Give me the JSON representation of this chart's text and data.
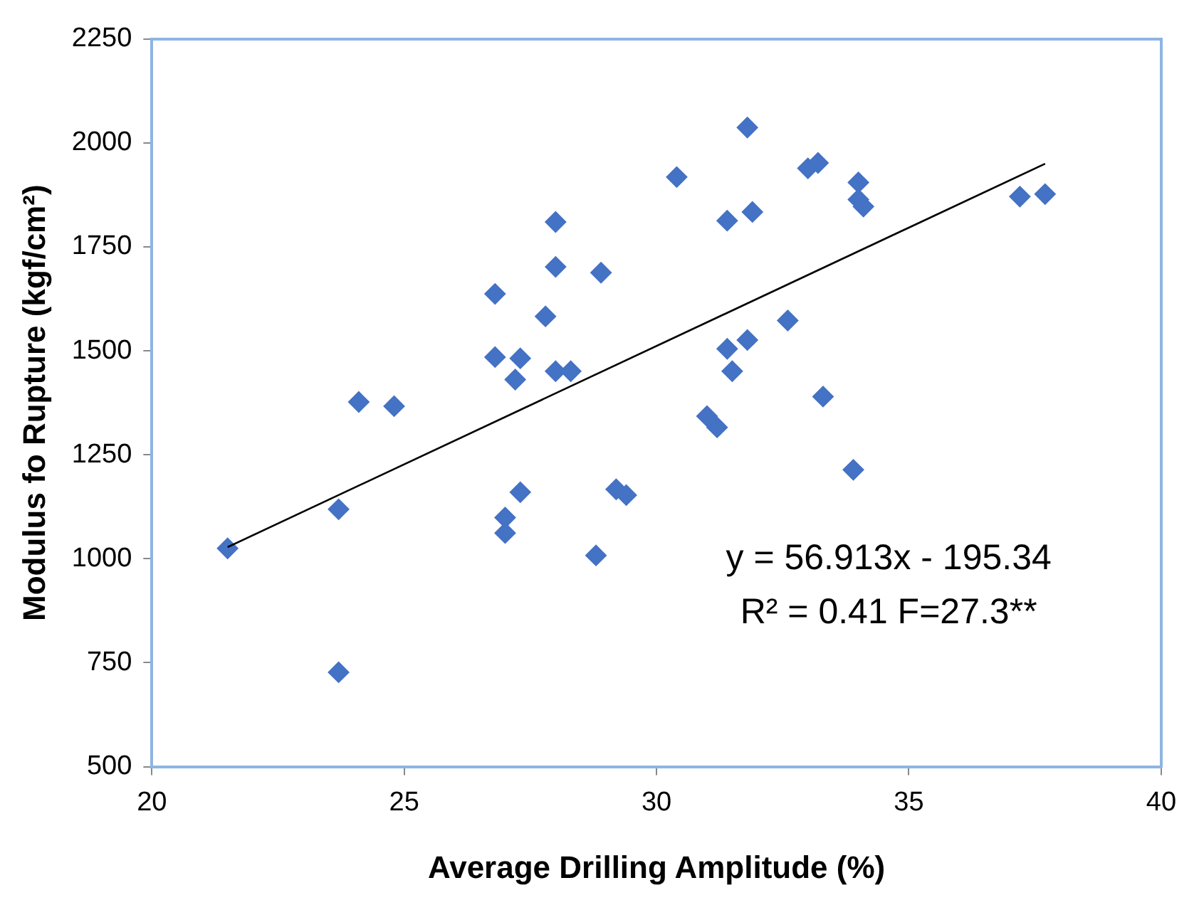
{
  "chart_data": {
    "type": "scatter",
    "xlabel": "Average Drilling Amplitude (%)",
    "ylabel": "Modulus fo Rupture (kgf/cm²)",
    "xlim": [
      20,
      40
    ],
    "xticks": [
      20,
      25,
      30,
      35,
      40
    ],
    "ylim": [
      500,
      2250
    ],
    "yticks": [
      500,
      750,
      1000,
      1250,
      1500,
      1750,
      2000,
      2250
    ],
    "grid": false,
    "legend": false,
    "marker": "diamond",
    "annotations": [
      "y = 56.913x - 195.34",
      "R² = 0.41 F=27.3**"
    ],
    "series": [
      {
        "type": "scatter",
        "color": "#4472c4",
        "x": [
          21.5,
          23.7,
          23.7,
          24.1,
          24.8,
          26.8,
          26.8,
          27.0,
          27.0,
          27.3,
          27.3,
          27.2,
          27.8,
          28.0,
          28.0,
          28.3,
          28.0,
          28.8,
          28.9,
          29.2,
          29.4,
          30.4,
          31.0,
          31.2,
          31.4,
          31.4,
          31.5,
          31.8,
          31.8,
          31.9,
          32.6,
          33.0,
          33.2,
          33.3,
          33.9,
          34.0,
          34.0,
          34.1,
          37.2,
          37.7
        ],
        "values": [
          1025,
          1119,
          727,
          1377,
          1367,
          1637,
          1485,
          1099,
          1062,
          1160,
          1482,
          1431,
          1583,
          1702,
          1451,
          1451,
          1810,
          1008,
          1688,
          1167,
          1153,
          1918,
          1343,
          1316,
          1505,
          1813,
          1451,
          2037,
          1526,
          1834,
          1573,
          1939,
          1952,
          1390,
          1214,
          1905,
          1864,
          1847,
          1871,
          1877
        ]
      },
      {
        "type": "line",
        "color": "#000000",
        "marker": "none",
        "x": [
          21.5,
          37.7
        ],
        "values": [
          1028,
          1950
        ]
      }
    ]
  }
}
